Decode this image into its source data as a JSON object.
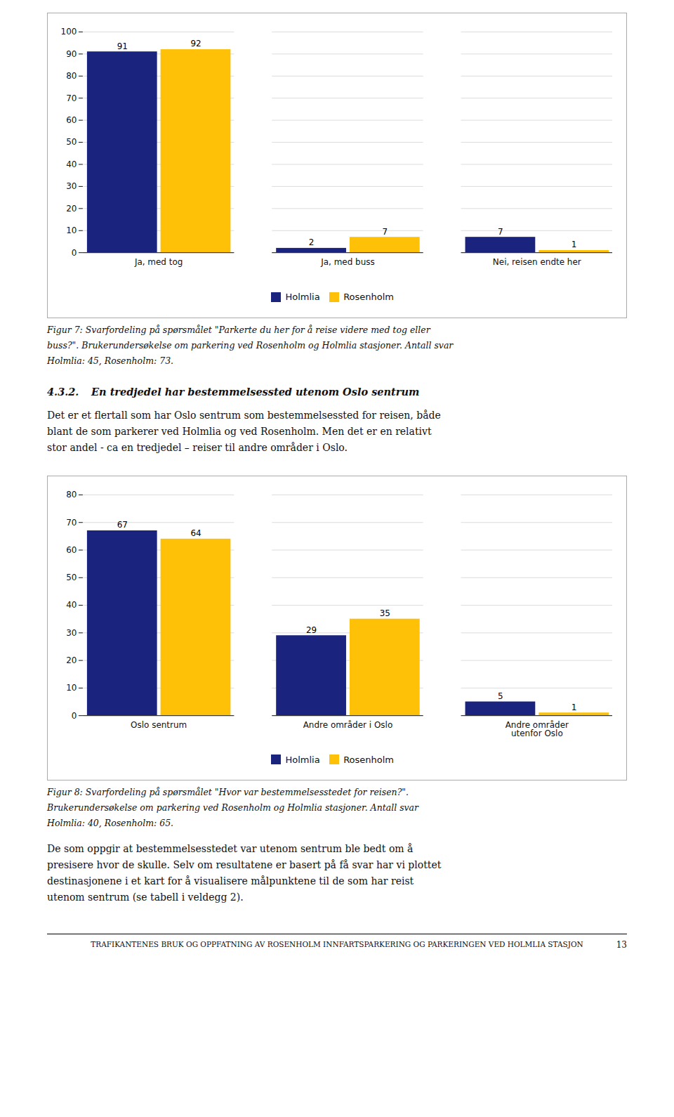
{
  "chart_data": [
    {
      "type": "bar",
      "categories": [
        "Ja, med tog",
        "Ja, med buss",
        "Nei, reisen endte her"
      ],
      "series": [
        {
          "name": "Holmlia",
          "color": "#1a237e",
          "values": [
            91,
            2,
            7
          ]
        },
        {
          "name": "Rosenholm",
          "color": "#ffc107",
          "values": [
            92,
            7,
            1
          ]
        }
      ],
      "ylim": [
        0,
        100
      ],
      "yticks": [
        0,
        10,
        20,
        30,
        40,
        50,
        60,
        70,
        80,
        90,
        100
      ],
      "grid": true,
      "legend": "bottom",
      "data_labels": true,
      "caption": [
        "Figur 7: Svarfordeling på spørsmålet \"Parkerte du her for å reise videre med tog eller",
        "buss?\". Brukerundersøkelse om parkering ved Rosenholm og Holmlia stasjoner. Antall svar",
        "Holmlia: 45, Rosenholm: 73."
      ],
      "annotations": [
        "4.3.2.",
        "En tredjedel har bestemmelsessted utenom Oslo sentrum",
        "Det er et flertall som har Oslo sentrum som bestemmelsessted for reisen, både",
        "blant de som parkerer ved Holmlia og ved Rosenholm. Men det er en relativt",
        "stor andel - ca en tredjedel – reiser til andre områder i Oslo."
      ]
    },
    {
      "type": "bar",
      "categories": [
        "Oslo sentrum",
        "Andre områder i Oslo",
        "Andre områder\nutenfor Oslo"
      ],
      "series": [
        {
          "name": "Holmlia",
          "color": "#1a237e",
          "values": [
            67,
            29,
            5
          ]
        },
        {
          "name": "Rosenholm",
          "color": "#ffc107",
          "values": [
            64,
            35,
            1
          ]
        }
      ],
      "ylim": [
        0,
        80
      ],
      "yticks": [
        0,
        10,
        20,
        30,
        40,
        50,
        60,
        70,
        80
      ],
      "grid": true,
      "legend": "bottom",
      "data_labels": true,
      "caption": [
        "Figur 8: Svarfordeling på spørsmålet \"Hvor var bestemmelsesstedet for reisen?\".",
        "Brukerundersøkelse om parkering ved Rosenholm og Holmlia stasjoner. Antall svar",
        "Holmlia: 40, Rosenholm: 65."
      ],
      "annotations": [
        "De som oppgir at bestemmelsesstedet var utenom sentrum ble bedt om å",
        "presisere hvor de skulle. Selv om resultatene er basert på få svar har vi plottet",
        "destinasjonene i et kart for å visualisere målpunktene til de som har reist",
        "utenom sentrum (se tabell i veldegg 2).",
        "TRAFIKANTENES BRUK OG OPPFATNING AV ROSENHOLM INNFARTSPARKERING OG PARKERINGEN VED HOLMLIA STASJON",
        "13"
      ]
    }
  ]
}
